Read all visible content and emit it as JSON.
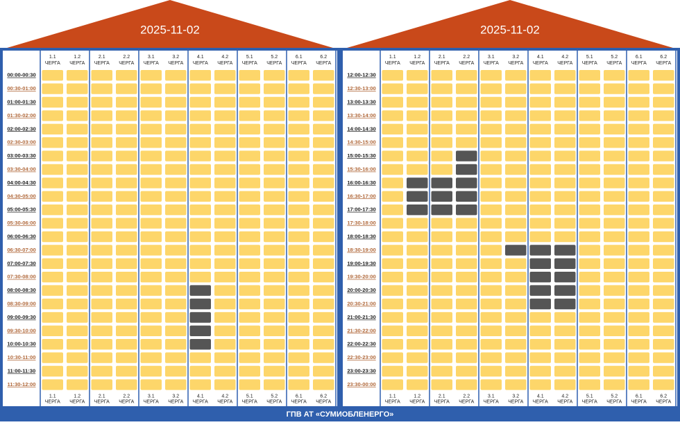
{
  "panels": [
    {
      "date": "2025-11-02",
      "rows": [
        {
          "time": "00:00-00:30",
          "cells": [
            0,
            0,
            0,
            0,
            0,
            0,
            0,
            0,
            0,
            0,
            0,
            0
          ]
        },
        {
          "time": "00:30-01:00",
          "cells": [
            0,
            0,
            0,
            0,
            0,
            0,
            0,
            0,
            0,
            0,
            0,
            0
          ]
        },
        {
          "time": "01:00-01:30",
          "cells": [
            0,
            0,
            0,
            0,
            0,
            0,
            0,
            0,
            0,
            0,
            0,
            0
          ]
        },
        {
          "time": "01:30-02:00",
          "cells": [
            0,
            0,
            0,
            0,
            0,
            0,
            0,
            0,
            0,
            0,
            0,
            0
          ]
        },
        {
          "time": "02:00-02:30",
          "cells": [
            0,
            0,
            0,
            0,
            0,
            0,
            0,
            0,
            0,
            0,
            0,
            0
          ]
        },
        {
          "time": "02:30-03:00",
          "cells": [
            0,
            0,
            0,
            0,
            0,
            0,
            0,
            0,
            0,
            0,
            0,
            0
          ]
        },
        {
          "time": "03:00-03:30",
          "cells": [
            0,
            0,
            0,
            0,
            0,
            0,
            0,
            0,
            0,
            0,
            0,
            0
          ]
        },
        {
          "time": "03:30-04:00",
          "cells": [
            0,
            0,
            0,
            0,
            0,
            0,
            0,
            0,
            0,
            0,
            0,
            0
          ]
        },
        {
          "time": "04:00-04:30",
          "cells": [
            0,
            0,
            0,
            0,
            0,
            0,
            0,
            0,
            0,
            0,
            0,
            0
          ]
        },
        {
          "time": "04:30-05:00",
          "cells": [
            0,
            0,
            0,
            0,
            0,
            0,
            0,
            0,
            0,
            0,
            0,
            0
          ]
        },
        {
          "time": "05:00-05:30",
          "cells": [
            0,
            0,
            0,
            0,
            0,
            0,
            0,
            0,
            0,
            0,
            0,
            0
          ]
        },
        {
          "time": "05:30-06:00",
          "cells": [
            0,
            0,
            0,
            0,
            0,
            0,
            0,
            0,
            0,
            0,
            0,
            0
          ]
        },
        {
          "time": "06:00-06:30",
          "cells": [
            0,
            0,
            0,
            0,
            0,
            0,
            0,
            0,
            0,
            0,
            0,
            0
          ]
        },
        {
          "time": "06:30-07:00",
          "cells": [
            0,
            0,
            0,
            0,
            0,
            0,
            0,
            0,
            0,
            0,
            0,
            0
          ]
        },
        {
          "time": "07:00-07:30",
          "cells": [
            0,
            0,
            0,
            0,
            0,
            0,
            0,
            0,
            0,
            0,
            0,
            0
          ]
        },
        {
          "time": "07:30-08:00",
          "cells": [
            0,
            0,
            0,
            0,
            0,
            0,
            0,
            0,
            0,
            0,
            0,
            0
          ]
        },
        {
          "time": "08:00-08:30",
          "cells": [
            0,
            0,
            0,
            0,
            0,
            0,
            1,
            0,
            0,
            0,
            0,
            0
          ]
        },
        {
          "time": "08:30-09:00",
          "cells": [
            0,
            0,
            0,
            0,
            0,
            0,
            1,
            0,
            0,
            0,
            0,
            0
          ]
        },
        {
          "time": "09:00-09:30",
          "cells": [
            0,
            0,
            0,
            0,
            0,
            0,
            1,
            0,
            0,
            0,
            0,
            0
          ]
        },
        {
          "time": "09:30-10:00",
          "cells": [
            0,
            0,
            0,
            0,
            0,
            0,
            1,
            0,
            0,
            0,
            0,
            0
          ]
        },
        {
          "time": "10:00-10:30",
          "cells": [
            0,
            0,
            0,
            0,
            0,
            0,
            1,
            0,
            0,
            0,
            0,
            0
          ]
        },
        {
          "time": "10:30-11:00",
          "cells": [
            0,
            0,
            0,
            0,
            0,
            0,
            0,
            0,
            0,
            0,
            0,
            0
          ]
        },
        {
          "time": "11:00-11:30",
          "cells": [
            0,
            0,
            0,
            0,
            0,
            0,
            0,
            0,
            0,
            0,
            0,
            0
          ]
        },
        {
          "time": "11:30-12:00",
          "cells": [
            0,
            0,
            0,
            0,
            0,
            0,
            0,
            0,
            0,
            0,
            0,
            0
          ]
        }
      ]
    },
    {
      "date": "2025-11-02",
      "rows": [
        {
          "time": "12:00-12:30",
          "cells": [
            0,
            0,
            0,
            0,
            0,
            0,
            0,
            0,
            0,
            0,
            0,
            0
          ]
        },
        {
          "time": "12:30-13:00",
          "cells": [
            0,
            0,
            0,
            0,
            0,
            0,
            0,
            0,
            0,
            0,
            0,
            0
          ]
        },
        {
          "time": "13:00-13:30",
          "cells": [
            0,
            0,
            0,
            0,
            0,
            0,
            0,
            0,
            0,
            0,
            0,
            0
          ]
        },
        {
          "time": "13:30-14:00",
          "cells": [
            0,
            0,
            0,
            0,
            0,
            0,
            0,
            0,
            0,
            0,
            0,
            0
          ]
        },
        {
          "time": "14:00-14:30",
          "cells": [
            0,
            0,
            0,
            0,
            0,
            0,
            0,
            0,
            0,
            0,
            0,
            0
          ]
        },
        {
          "time": "14:30-15:00",
          "cells": [
            0,
            0,
            0,
            0,
            0,
            0,
            0,
            0,
            0,
            0,
            0,
            0
          ]
        },
        {
          "time": "15:00-15:30",
          "cells": [
            0,
            0,
            0,
            1,
            0,
            0,
            0,
            0,
            0,
            0,
            0,
            0
          ]
        },
        {
          "time": "15:30-16:00",
          "cells": [
            0,
            0,
            0,
            1,
            0,
            0,
            0,
            0,
            0,
            0,
            0,
            0
          ]
        },
        {
          "time": "16:00-16:30",
          "cells": [
            0,
            1,
            1,
            1,
            0,
            0,
            0,
            0,
            0,
            0,
            0,
            0
          ]
        },
        {
          "time": "16:30-17:00",
          "cells": [
            0,
            1,
            1,
            1,
            0,
            0,
            0,
            0,
            0,
            0,
            0,
            0
          ]
        },
        {
          "time": "17:00-17:30",
          "cells": [
            0,
            1,
            1,
            1,
            0,
            0,
            0,
            0,
            0,
            0,
            0,
            0
          ]
        },
        {
          "time": "17:30-18:00",
          "cells": [
            0,
            0,
            0,
            0,
            0,
            0,
            0,
            0,
            0,
            0,
            0,
            0
          ]
        },
        {
          "time": "18:00-18:30",
          "cells": [
            0,
            0,
            0,
            0,
            0,
            0,
            0,
            0,
            0,
            0,
            0,
            0
          ]
        },
        {
          "time": "18:30-19:00",
          "cells": [
            0,
            0,
            0,
            0,
            0,
            1,
            1,
            1,
            0,
            0,
            0,
            0
          ]
        },
        {
          "time": "19:00-19:30",
          "cells": [
            0,
            0,
            0,
            0,
            0,
            0,
            1,
            1,
            0,
            0,
            0,
            0
          ]
        },
        {
          "time": "19:30-20:00",
          "cells": [
            0,
            0,
            0,
            0,
            0,
            0,
            1,
            1,
            0,
            0,
            0,
            0
          ]
        },
        {
          "time": "20:00-20:30",
          "cells": [
            0,
            0,
            0,
            0,
            0,
            0,
            1,
            1,
            0,
            0,
            0,
            0
          ]
        },
        {
          "time": "20:30-21:00",
          "cells": [
            0,
            0,
            0,
            0,
            0,
            0,
            1,
            1,
            0,
            0,
            0,
            0
          ]
        },
        {
          "time": "21:00-21:30",
          "cells": [
            0,
            0,
            0,
            0,
            0,
            0,
            0,
            0,
            0,
            0,
            0,
            0
          ]
        },
        {
          "time": "21:30-22:00",
          "cells": [
            0,
            0,
            0,
            0,
            0,
            0,
            0,
            0,
            0,
            0,
            0,
            0
          ]
        },
        {
          "time": "22:00-22:30",
          "cells": [
            0,
            0,
            0,
            0,
            0,
            0,
            0,
            0,
            0,
            0,
            0,
            0
          ]
        },
        {
          "time": "22:30-23:00",
          "cells": [
            0,
            0,
            0,
            0,
            0,
            0,
            0,
            0,
            0,
            0,
            0,
            0
          ]
        },
        {
          "time": "23:00-23:30",
          "cells": [
            0,
            0,
            0,
            0,
            0,
            0,
            0,
            0,
            0,
            0,
            0,
            0
          ]
        },
        {
          "time": "23:30-00:00",
          "cells": [
            0,
            0,
            0,
            0,
            0,
            0,
            0,
            0,
            0,
            0,
            0,
            0
          ]
        }
      ]
    }
  ],
  "columns": [
    {
      "queue": "1.1",
      "word": "ЧЕРГА"
    },
    {
      "queue": "1.2",
      "word": "ЧЕРГА"
    },
    {
      "queue": "2.1",
      "word": "ЧЕРГА"
    },
    {
      "queue": "2.2",
      "word": "ЧЕРГА"
    },
    {
      "queue": "3.1",
      "word": "ЧЕРГА"
    },
    {
      "queue": "3.2",
      "word": "ЧЕРГА"
    },
    {
      "queue": "4.1",
      "word": "ЧЕРГА"
    },
    {
      "queue": "4.2",
      "word": "ЧЕРГА"
    },
    {
      "queue": "5.1",
      "word": "ЧЕРГА"
    },
    {
      "queue": "5.2",
      "word": "ЧЕРГА"
    },
    {
      "queue": "6.1",
      "word": "ЧЕРГА"
    },
    {
      "queue": "6.2",
      "word": "ЧЕРГА"
    }
  ],
  "footer": "ГПВ АТ «СУМИОБЛЕНЕРГО»"
}
